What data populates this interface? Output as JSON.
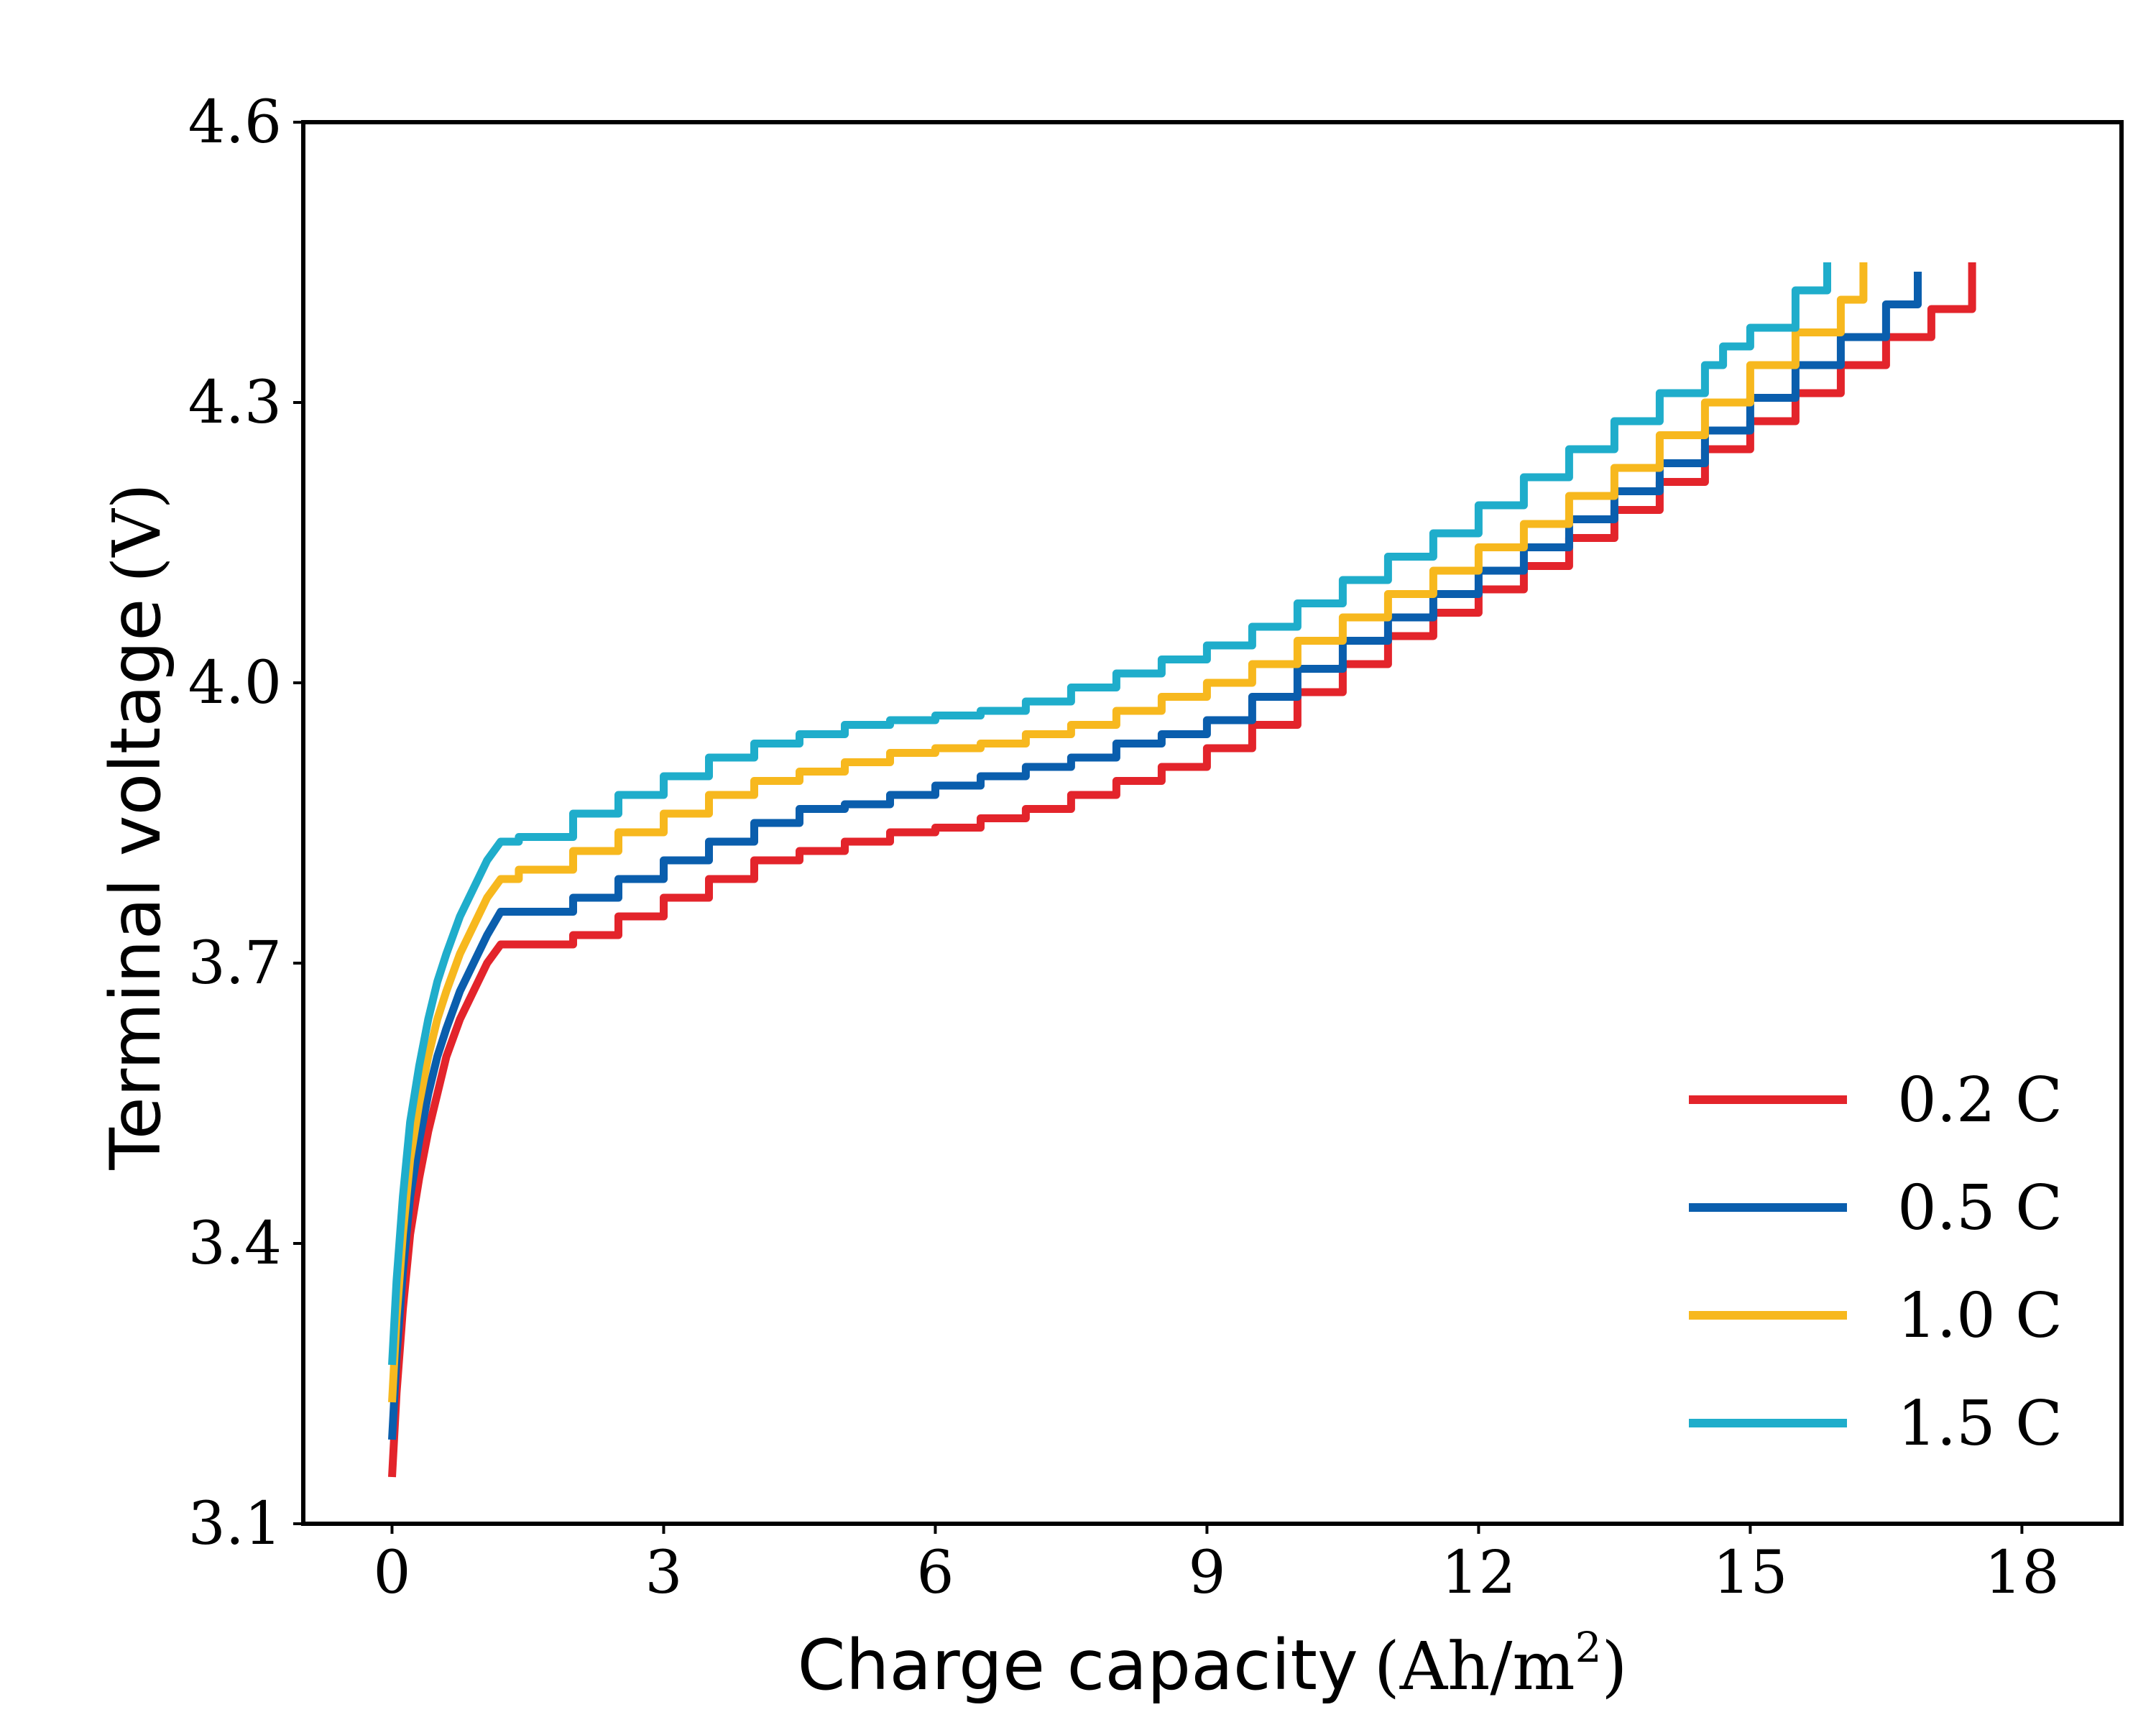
{
  "chart_data": {
    "type": "line",
    "title": "",
    "xlabel": {
      "main": "Charge capacity",
      "unit": "(Ah/m",
      "sup": "2",
      "close": ")"
    },
    "ylabel": {
      "main": "Terminal voltage",
      "unit": "(V)"
    },
    "xlim": [
      -0.98,
      19.1
    ],
    "ylim": [
      3.1,
      4.6
    ],
    "xticks": [
      0,
      3,
      6,
      9,
      12,
      15,
      18
    ],
    "yticks": [
      3.1,
      3.4,
      3.7,
      4.0,
      4.3,
      4.6
    ],
    "xtick_labels": [
      "0",
      "3",
      "6",
      "9",
      "12",
      "15",
      "18"
    ],
    "ytick_labels": [
      "3.1",
      "3.4",
      "3.7",
      "4.0",
      "4.3",
      "4.6"
    ],
    "grid": false,
    "legend_position": "bottom-right",
    "series": [
      {
        "name": "0.2 C",
        "color": "#e3242b",
        "x": [
          0,
          0.05,
          0.12,
          0.2,
          0.3,
          0.4,
          0.5,
          0.6,
          0.75,
          0.9,
          1.05,
          1.2,
          1.4,
          2.0,
          2.5,
          3.0,
          3.5,
          4.0,
          4.5,
          5.0,
          5.5,
          6.0,
          6.5,
          7.0,
          7.5,
          8.0,
          8.5,
          9.0,
          9.5,
          10.0,
          10.5,
          11.0,
          11.5,
          12.0,
          12.5,
          13.0,
          13.5,
          14.0,
          14.5,
          15.0,
          15.5,
          16.0,
          16.5,
          17.0,
          17.45
        ],
        "y": [
          3.15,
          3.24,
          3.33,
          3.41,
          3.47,
          3.52,
          3.56,
          3.6,
          3.64,
          3.67,
          3.7,
          3.72,
          3.72,
          3.73,
          3.75,
          3.77,
          3.79,
          3.81,
          3.82,
          3.83,
          3.84,
          3.845,
          3.855,
          3.865,
          3.88,
          3.895,
          3.91,
          3.93,
          3.955,
          3.99,
          4.02,
          4.05,
          4.075,
          4.1,
          4.125,
          4.155,
          4.185,
          4.215,
          4.25,
          4.28,
          4.31,
          4.34,
          4.37,
          4.4,
          4.45
        ]
      },
      {
        "name": "0.5 C",
        "color": "#0a5ead",
        "x": [
          0,
          0.05,
          0.12,
          0.2,
          0.3,
          0.4,
          0.5,
          0.6,
          0.75,
          0.9,
          1.05,
          1.2,
          1.4,
          2.0,
          2.5,
          3.0,
          3.5,
          4.0,
          4.5,
          5.0,
          5.5,
          6.0,
          6.5,
          7.0,
          7.5,
          8.0,
          8.5,
          9.0,
          9.5,
          10.0,
          10.5,
          11.0,
          11.5,
          12.0,
          12.5,
          13.0,
          13.5,
          14.0,
          14.5,
          15.0,
          15.5,
          16.0,
          16.5,
          16.85
        ],
        "y": [
          3.19,
          3.28,
          3.37,
          3.45,
          3.51,
          3.56,
          3.6,
          3.63,
          3.67,
          3.7,
          3.73,
          3.755,
          3.755,
          3.77,
          3.79,
          3.81,
          3.83,
          3.85,
          3.865,
          3.87,
          3.88,
          3.89,
          3.9,
          3.91,
          3.92,
          3.935,
          3.945,
          3.96,
          3.985,
          4.015,
          4.045,
          4.07,
          4.095,
          4.12,
          4.145,
          4.175,
          4.205,
          4.235,
          4.27,
          4.305,
          4.34,
          4.37,
          4.405,
          4.44
        ]
      },
      {
        "name": "1.0 C",
        "color": "#f7b81e",
        "x": [
          0,
          0.05,
          0.12,
          0.2,
          0.3,
          0.4,
          0.5,
          0.6,
          0.75,
          0.9,
          1.05,
          1.2,
          1.4,
          2.0,
          2.5,
          3.0,
          3.5,
          4.0,
          4.5,
          5.0,
          5.5,
          6.0,
          6.5,
          7.0,
          7.5,
          8.0,
          8.5,
          9.0,
          9.5,
          10.0,
          10.5,
          11.0,
          11.5,
          12.0,
          12.5,
          13.0,
          13.5,
          14.0,
          14.5,
          15.0,
          15.5,
          16.0,
          16.25
        ],
        "y": [
          3.23,
          3.32,
          3.41,
          3.49,
          3.55,
          3.6,
          3.64,
          3.67,
          3.71,
          3.74,
          3.77,
          3.79,
          3.8,
          3.82,
          3.84,
          3.86,
          3.88,
          3.895,
          3.905,
          3.915,
          3.925,
          3.93,
          3.935,
          3.945,
          3.955,
          3.97,
          3.985,
          4.0,
          4.02,
          4.045,
          4.07,
          4.095,
          4.12,
          4.145,
          4.17,
          4.2,
          4.23,
          4.265,
          4.3,
          4.34,
          4.375,
          4.41,
          4.45
        ]
      },
      {
        "name": "1.5 C",
        "color": "#1fadcb",
        "x": [
          0,
          0.05,
          0.12,
          0.2,
          0.3,
          0.4,
          0.5,
          0.6,
          0.75,
          0.9,
          1.05,
          1.2,
          1.4,
          2.0,
          2.5,
          3.0,
          3.5,
          4.0,
          4.5,
          5.0,
          5.5,
          6.0,
          6.5,
          7.0,
          7.5,
          8.0,
          8.5,
          9.0,
          9.5,
          10.0,
          10.5,
          11.0,
          11.5,
          12.0,
          12.5,
          13.0,
          13.5,
          14.0,
          14.5,
          14.7,
          15.0,
          15.5,
          15.85
        ],
        "y": [
          3.27,
          3.36,
          3.45,
          3.53,
          3.59,
          3.64,
          3.68,
          3.71,
          3.75,
          3.78,
          3.81,
          3.83,
          3.835,
          3.86,
          3.88,
          3.9,
          3.92,
          3.935,
          3.945,
          3.955,
          3.96,
          3.965,
          3.97,
          3.98,
          3.995,
          4.01,
          4.025,
          4.04,
          4.06,
          4.085,
          4.11,
          4.135,
          4.16,
          4.19,
          4.22,
          4.25,
          4.28,
          4.31,
          4.34,
          4.36,
          4.38,
          4.42,
          4.45
        ]
      }
    ]
  }
}
